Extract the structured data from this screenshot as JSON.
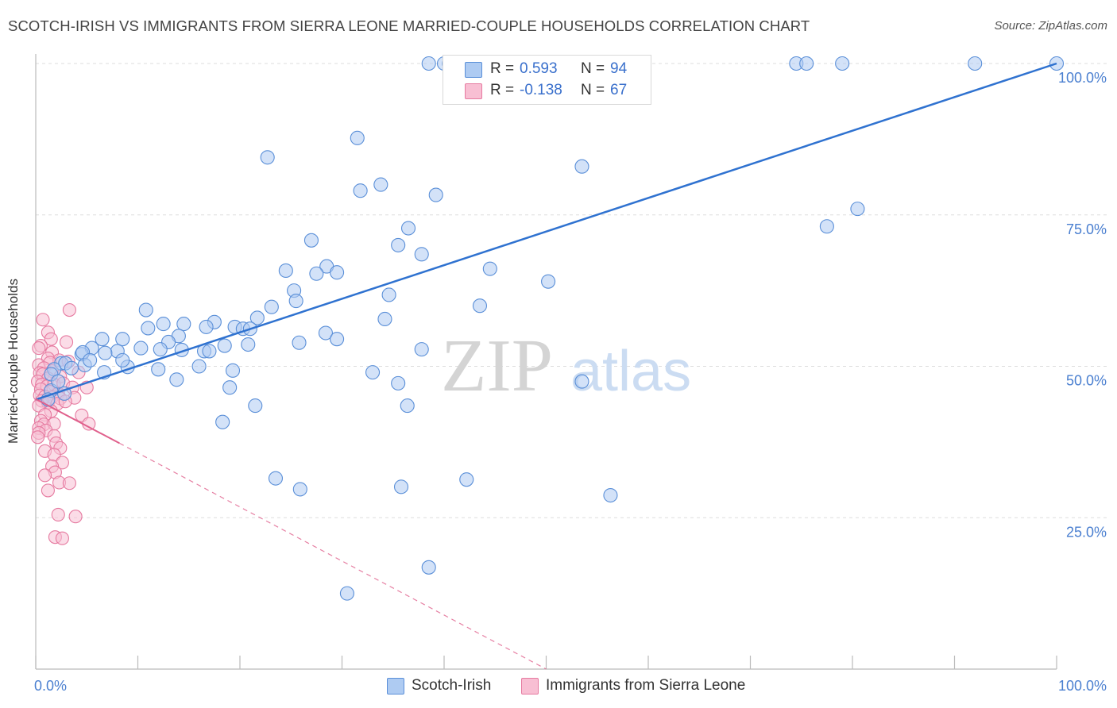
{
  "title": "SCOTCH-IRISH VS IMMIGRANTS FROM SIERRA LEONE MARRIED-COUPLE HOUSEHOLDS CORRELATION CHART",
  "source": "Source: ZipAtlas.com",
  "watermark": {
    "zip": "ZIP",
    "atlas": "atlas"
  },
  "colors": {
    "blue_fill": "#aecbf2",
    "blue_stroke": "#5a8fd8",
    "blue_line": "#2f72d0",
    "pink_fill": "#f8bfd3",
    "pink_stroke": "#e67aa0",
    "pink_line": "#e0608c",
    "tick_text": "#4a7fd0",
    "grid": "#dddddd"
  },
  "legend": {
    "rows": [
      {
        "series": "Scotch-Irish",
        "r_label": "R =",
        "r_value": "0.593",
        "n_label": "N =",
        "n_value": "94"
      },
      {
        "series": "Immigrants from Sierra Leone",
        "r_label": "R =",
        "r_value": "-0.138",
        "n_label": "N =",
        "n_value": "67"
      }
    ]
  },
  "bottom_legend": [
    "Scotch-Irish",
    "Immigrants from Sierra Leone"
  ],
  "chart_data": {
    "type": "scatter",
    "title": "SCOTCH-IRISH VS IMMIGRANTS FROM SIERRA LEONE MARRIED-COUPLE HOUSEHOLDS CORRELATION CHART",
    "xlabel": "",
    "ylabel": "Married-couple Households",
    "xlim": [
      0,
      100
    ],
    "ylim": [
      0,
      100
    ],
    "x_tick_labels": [
      "0.0%",
      "100.0%"
    ],
    "y_ticks": [
      25,
      50,
      75,
      100
    ],
    "y_tick_labels": [
      "25.0%",
      "50.0%",
      "75.0%",
      "100.0%"
    ],
    "grid": true,
    "series": [
      {
        "name": "Scotch-Irish",
        "color": "blue",
        "trend": {
          "x0": 0,
          "y0": 44.5,
          "x1": 100,
          "y1": 100,
          "style": "solid"
        },
        "points": [
          [
            38.5,
            100
          ],
          [
            40,
            100
          ],
          [
            40.5,
            100
          ],
          [
            55.5,
            100
          ],
          [
            74.5,
            100
          ],
          [
            75.5,
            100
          ],
          [
            79,
            100
          ],
          [
            92,
            100
          ],
          [
            100,
            100
          ],
          [
            31.5,
            87.7
          ],
          [
            22.7,
            84.5
          ],
          [
            53.5,
            83
          ],
          [
            33.8,
            80
          ],
          [
            31.8,
            79
          ],
          [
            39.2,
            78.3
          ],
          [
            80.5,
            76
          ],
          [
            77.5,
            73.1
          ],
          [
            36.5,
            72.8
          ],
          [
            27,
            70.8
          ],
          [
            35.5,
            70
          ],
          [
            37.8,
            68.5
          ],
          [
            24.5,
            65.8
          ],
          [
            28.5,
            66.5
          ],
          [
            27.5,
            65.3
          ],
          [
            29.5,
            65.5
          ],
          [
            44.5,
            66.1
          ],
          [
            50.2,
            64
          ],
          [
            25.3,
            62.5
          ],
          [
            34.6,
            61.8
          ],
          [
            25.5,
            60.8
          ],
          [
            23.1,
            59.8
          ],
          [
            43.5,
            60
          ],
          [
            21.7,
            58
          ],
          [
            10.8,
            59.3
          ],
          [
            34.2,
            57.8
          ],
          [
            17.5,
            57.3
          ],
          [
            12.5,
            57
          ],
          [
            14.5,
            57
          ],
          [
            16.7,
            56.5
          ],
          [
            19.5,
            56.5
          ],
          [
            20.3,
            56.2
          ],
          [
            11,
            56.3
          ],
          [
            21,
            56.2
          ],
          [
            28.4,
            55.5
          ],
          [
            14,
            55
          ],
          [
            29.5,
            54.5
          ],
          [
            6.5,
            54.5
          ],
          [
            8.5,
            54.5
          ],
          [
            13,
            54
          ],
          [
            25.8,
            53.9
          ],
          [
            20.8,
            53.6
          ],
          [
            18.5,
            53.4
          ],
          [
            5.5,
            53
          ],
          [
            10.3,
            53
          ],
          [
            12.2,
            52.8
          ],
          [
            8,
            52.5
          ],
          [
            14.3,
            52.7
          ],
          [
            16.5,
            52.5
          ],
          [
            17,
            52.5
          ],
          [
            37.8,
            52.8
          ],
          [
            4.5,
            52
          ],
          [
            4.6,
            52.3
          ],
          [
            6.8,
            52.2
          ],
          [
            2.5,
            50.5
          ],
          [
            2.9,
            50.5
          ],
          [
            4.8,
            50.2
          ],
          [
            5.3,
            51
          ],
          [
            9,
            49.9
          ],
          [
            16,
            50
          ],
          [
            3.5,
            49.7
          ],
          [
            6.7,
            49
          ],
          [
            1.8,
            49.5
          ],
          [
            1.5,
            48.7
          ],
          [
            19.3,
            49.3
          ],
          [
            33,
            49
          ],
          [
            13.8,
            47.8
          ],
          [
            35.5,
            47.2
          ],
          [
            19,
            46.5
          ],
          [
            53.5,
            47.5
          ],
          [
            2.8,
            45.5
          ],
          [
            1.5,
            46
          ],
          [
            21.5,
            43.5
          ],
          [
            36.4,
            43.5
          ],
          [
            18.3,
            40.8
          ],
          [
            23.5,
            31.5
          ],
          [
            25.9,
            29.7
          ],
          [
            35.8,
            30.1
          ],
          [
            42.2,
            31.3
          ],
          [
            56.3,
            28.7
          ],
          [
            38.5,
            16.8
          ],
          [
            30.5,
            12.5
          ],
          [
            1.2,
            44.5
          ],
          [
            2.2,
            47.5
          ],
          [
            8.5,
            51
          ],
          [
            12,
            49.5
          ]
        ]
      },
      {
        "name": "Immigrants from Sierra Leone",
        "color": "pink",
        "trend": {
          "x0": 0,
          "y0": 44.6,
          "x1": 8.2,
          "y1": 37.3,
          "style": "solid"
        },
        "trend_extension": {
          "x0": 8.2,
          "y0": 37.3,
          "x1": 50,
          "y1": 0,
          "style": "dashed"
        },
        "points": [
          [
            3.3,
            59.3
          ],
          [
            0.7,
            57.7
          ],
          [
            1.2,
            55.6
          ],
          [
            1.5,
            54.5
          ],
          [
            3,
            54
          ],
          [
            0.5,
            53.4
          ],
          [
            0.3,
            53
          ],
          [
            1.6,
            52.3
          ],
          [
            1.2,
            51.3
          ],
          [
            2.3,
            51
          ],
          [
            3.2,
            50.8
          ],
          [
            0.3,
            50.2
          ],
          [
            1.4,
            50.6
          ],
          [
            0.8,
            49.7
          ],
          [
            0.4,
            48.9
          ],
          [
            1.6,
            49.2
          ],
          [
            0.7,
            48.7
          ],
          [
            1.2,
            48
          ],
          [
            2.4,
            48.3
          ],
          [
            0.2,
            47.5
          ],
          [
            0.6,
            47
          ],
          [
            1.1,
            46.7
          ],
          [
            1.8,
            47
          ],
          [
            2.7,
            47.2
          ],
          [
            0.5,
            46.2
          ],
          [
            1.4,
            45.8
          ],
          [
            2.2,
            45.5
          ],
          [
            3.6,
            46.5
          ],
          [
            0.4,
            45.2
          ],
          [
            0.9,
            45
          ],
          [
            1.6,
            44.9
          ],
          [
            2.4,
            44.7
          ],
          [
            0.6,
            44.3
          ],
          [
            1.2,
            44
          ],
          [
            2.1,
            43.8
          ],
          [
            0.3,
            43.5
          ],
          [
            1.5,
            42.6
          ],
          [
            0.9,
            42
          ],
          [
            4.5,
            41.9
          ],
          [
            0.5,
            41
          ],
          [
            0.8,
            40.4
          ],
          [
            1.8,
            40.5
          ],
          [
            0.3,
            39.8
          ],
          [
            1,
            39.4
          ],
          [
            0.3,
            39
          ],
          [
            1.8,
            38.5
          ],
          [
            0.2,
            38.3
          ],
          [
            2,
            37.3
          ],
          [
            2.4,
            36.5
          ],
          [
            0.9,
            36
          ],
          [
            1.8,
            35.4
          ],
          [
            2.6,
            34.1
          ],
          [
            1.6,
            33.5
          ],
          [
            1.9,
            32.5
          ],
          [
            0.9,
            32
          ],
          [
            2.3,
            30.8
          ],
          [
            3.3,
            30.7
          ],
          [
            1.2,
            29.5
          ],
          [
            2.2,
            25.5
          ],
          [
            3.9,
            25.2
          ],
          [
            1.9,
            21.8
          ],
          [
            2.6,
            21.6
          ],
          [
            5,
            46.5
          ],
          [
            5.2,
            40.5
          ],
          [
            4.2,
            49
          ],
          [
            3.8,
            44.8
          ],
          [
            2.9,
            44.2
          ]
        ]
      }
    ]
  }
}
